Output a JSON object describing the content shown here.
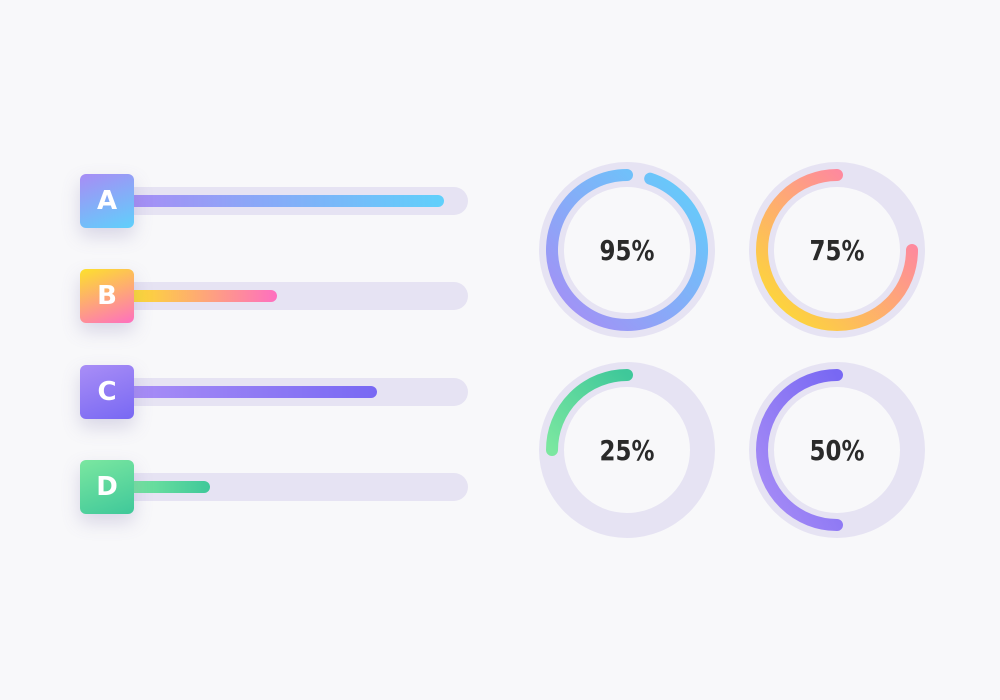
{
  "bars": [
    {
      "letter": "A",
      "value": 95,
      "c1": "#a88cf5",
      "c2": "#5fd0fb"
    },
    {
      "letter": "B",
      "value": 45,
      "c1": "#fde12c",
      "c2": "#fe6fc0"
    },
    {
      "letter": "C",
      "value": 75,
      "c1": "#a98ef6",
      "c2": "#7868f3"
    },
    {
      "letter": "D",
      "value": 25,
      "c1": "#7be7a0",
      "c2": "#3fc89a"
    }
  ],
  "rings": [
    {
      "label": "95%",
      "value": 95,
      "c1": "#a88cf5",
      "c2": "#5fd0fb"
    },
    {
      "label": "75%",
      "value": 75,
      "c1": "#fde12c",
      "c2": "#fe6fc0"
    },
    {
      "label": "25%",
      "value": 25,
      "c1": "#7be7a0",
      "c2": "#3fc89a"
    },
    {
      "label": "50%",
      "value": 50,
      "c1": "#a98ef6",
      "c2": "#7868f3"
    }
  ],
  "colors": {
    "track": "#e6e3f3",
    "background": "#f8f8fa",
    "text": "#2a2a2a"
  }
}
